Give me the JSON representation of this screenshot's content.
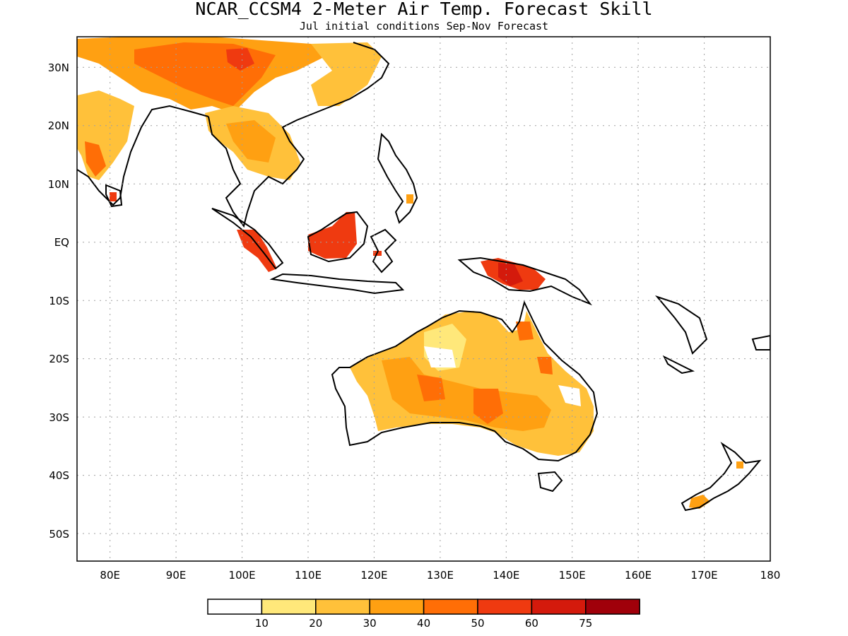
{
  "title": "NCAR_CCSM4 2-Meter Air Temp. Forecast Skill",
  "subtitle": "Jul initial conditions  Sep-Nov Forecast",
  "map": {
    "lon_range": [
      75,
      180
    ],
    "lat_range": [
      -55,
      35
    ],
    "lon_ticks": [
      "80E",
      "90E",
      "100E",
      "110E",
      "120E",
      "130E",
      "140E",
      "150E",
      "160E",
      "170E",
      "180"
    ],
    "lat_ticks": [
      "30N",
      "20N",
      "10N",
      "EQ",
      "10S",
      "20S",
      "30S",
      "40S",
      "50S"
    ],
    "grid": true
  },
  "legend": {
    "labels": [
      "10",
      "20",
      "30",
      "40",
      "50",
      "60",
      "75"
    ],
    "colors": [
      "#ffffff",
      "#ffe87a",
      "#ffc13a",
      "#ffa012",
      "#ff6e06",
      "#ef3a10",
      "#d41a0c",
      "#a0000a"
    ]
  }
}
